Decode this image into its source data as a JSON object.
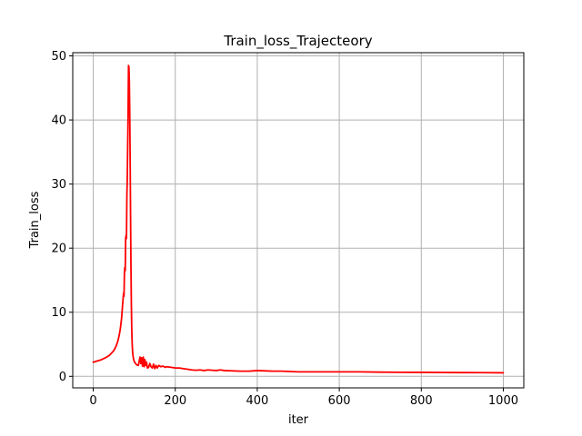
{
  "chart_data": {
    "type": "line",
    "title": "Train_loss_Trajecteory",
    "xlabel": "iter",
    "ylabel": "Train_loss",
    "xlim": [
      -50,
      1050
    ],
    "ylim": [
      -1.8,
      50.5
    ],
    "xticks": [
      0,
      200,
      400,
      600,
      800,
      1000
    ],
    "yticks": [
      0,
      10,
      20,
      30,
      40,
      50
    ],
    "grid": true,
    "colors": {
      "line": "#ff0000",
      "grid": "#b0b0b0",
      "axes": "#000000"
    },
    "series": [
      {
        "x": [
          0,
          10,
          20,
          30,
          40,
          50,
          55,
          60,
          63,
          66,
          69,
          72,
          74,
          75,
          76,
          77,
          78,
          79,
          80,
          81,
          82,
          83,
          84,
          85,
          86,
          87,
          88,
          89,
          90,
          91,
          92,
          93,
          94,
          95,
          96,
          97,
          98,
          100,
          103,
          106,
          110,
          114,
          116,
          118,
          120,
          122,
          124,
          126,
          128,
          130,
          132,
          135,
          138,
          141,
          144,
          147,
          150,
          153,
          156,
          160,
          165,
          170,
          175,
          180,
          190,
          200,
          210,
          220,
          230,
          240,
          250,
          260,
          270,
          280,
          290,
          300,
          310,
          320,
          340,
          360,
          380,
          390,
          400,
          420,
          440,
          460,
          480,
          500,
          550,
          600,
          650,
          700,
          750,
          800,
          850,
          900,
          950,
          1000
        ],
        "y": [
          2.2,
          2.4,
          2.6,
          2.9,
          3.3,
          4.0,
          4.6,
          5.5,
          6.3,
          7.4,
          9.0,
          11.5,
          13.0,
          12.5,
          16.0,
          17.0,
          16.5,
          21.5,
          22.0,
          21.5,
          28.0,
          31.0,
          36.0,
          41.0,
          48.5,
          48.3,
          46.0,
          41.0,
          34.0,
          25.0,
          17.0,
          11.0,
          7.0,
          5.0,
          3.8,
          3.2,
          2.8,
          2.3,
          2.0,
          1.8,
          1.7,
          3.0,
          2.0,
          2.9,
          1.6,
          3.0,
          1.5,
          2.6,
          1.7,
          2.2,
          1.3,
          1.4,
          2.0,
          1.5,
          1.3,
          1.9,
          1.2,
          1.7,
          1.3,
          1.7,
          1.5,
          1.6,
          1.4,
          1.5,
          1.4,
          1.3,
          1.3,
          1.2,
          1.1,
          1.0,
          0.95,
          1.0,
          0.9,
          1.0,
          0.95,
          0.9,
          1.0,
          0.9,
          0.85,
          0.8,
          0.8,
          0.85,
          0.9,
          0.85,
          0.8,
          0.8,
          0.75,
          0.7,
          0.7,
          0.7,
          0.7,
          0.65,
          0.63,
          0.62,
          0.6,
          0.58,
          0.57,
          0.55
        ]
      }
    ]
  }
}
